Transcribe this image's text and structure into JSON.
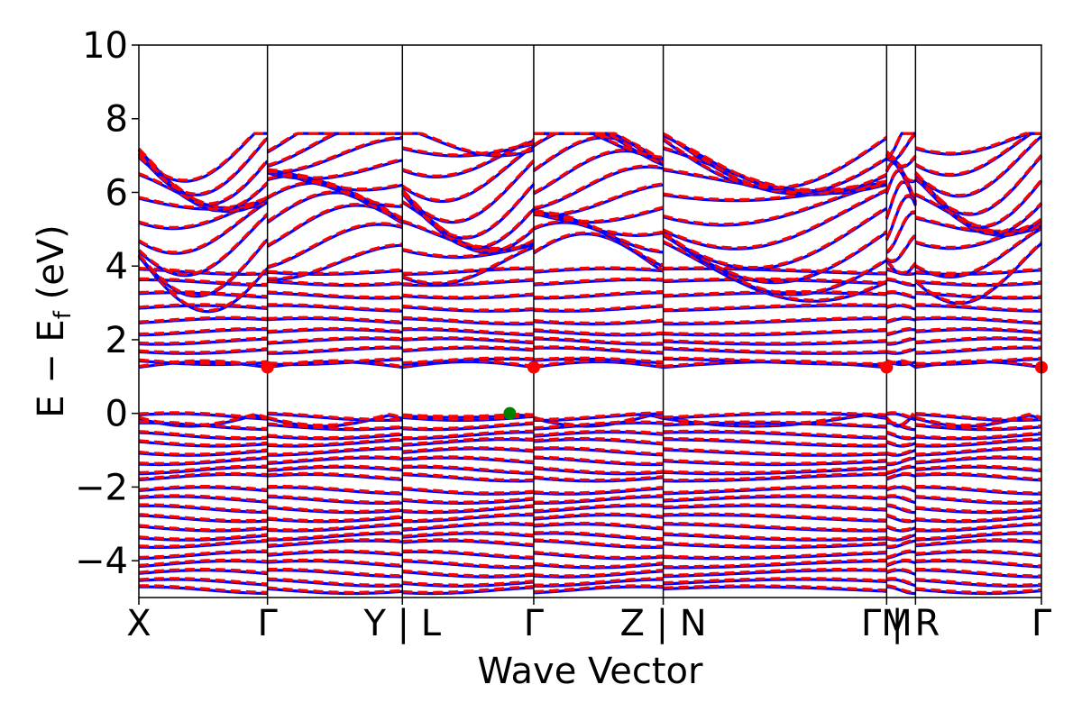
{
  "chart_data": {
    "type": "line",
    "title": "",
    "xlabel": "Wave Vector",
    "ylabel": {
      "main": "E − E",
      "sub": "f",
      "unit": " (eV)"
    },
    "ylim": [
      -5,
      10
    ],
    "yticks": [
      10,
      8,
      6,
      4,
      2,
      0,
      -2,
      -4
    ],
    "ytick_labels": [
      "10",
      "8",
      "6",
      "4",
      "2",
      "0",
      "−2",
      "−4"
    ],
    "kpath": {
      "breaks": [
        0,
        0.1425,
        0.292,
        0.4375,
        0.581,
        0.8285,
        0.8605,
        1.0
      ],
      "labels": [
        "X",
        "Γ",
        "Y | L",
        "Γ",
        "Z | N",
        "ΓM",
        "| R",
        "Γ"
      ]
    },
    "series": [
      {
        "color": "#0000ff",
        "style": "solid"
      },
      {
        "color": "#ff0000",
        "style": "dashed"
      }
    ],
    "bands_near_gap": {
      "valence_top": [
        0.0,
        -0.1,
        -0.35,
        -0.6,
        -0.8,
        -1.05,
        -1.3,
        -1.55,
        -1.75,
        -2.1,
        -2.35,
        -2.6,
        -2.85,
        -3.1,
        -3.35,
        -3.55,
        -3.85,
        -4.1,
        -4.35,
        -4.6,
        -4.8
      ],
      "conduction_low": [
        1.25,
        1.4,
        1.7,
        1.95,
        2.2,
        2.5,
        2.85,
        3.2,
        3.55,
        3.85
      ],
      "upper_window": [
        4.1,
        4.5,
        4.9,
        5.2,
        5.5,
        5.8,
        6.1,
        6.4,
        6.7,
        7.0,
        7.25,
        7.45
      ]
    },
    "markers": [
      {
        "x": 0.1425,
        "y": 1.25,
        "color": "#ff0000"
      },
      {
        "x": 0.4375,
        "y": 1.25,
        "color": "#ff0000"
      },
      {
        "x": 0.8285,
        "y": 1.25,
        "color": "#ff0000"
      },
      {
        "x": 1.0,
        "y": 1.25,
        "color": "#ff0000"
      },
      {
        "x": 0.411,
        "y": 0.0,
        "color": "#008000"
      }
    ],
    "grid": false,
    "legend": "none"
  }
}
